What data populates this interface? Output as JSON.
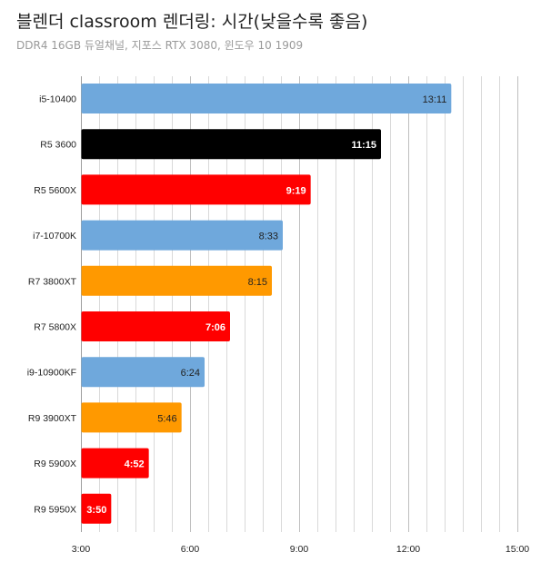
{
  "title": "블렌더 classroom 렌더링: 시간(낮을수록 좋음)",
  "subtitle": "DDR4 16GB 듀얼채널, 지포스 RTX 3080, 윈도우 10 1909",
  "colors": {
    "intel": "#6fa8dc",
    "amd_zen2": "#ff9900",
    "amd_zen3": "#ff0000",
    "reference": "#000000",
    "grid": "#d9d9d9",
    "axis_text": "#222222"
  },
  "chart_data": {
    "type": "bar",
    "orientation": "horizontal",
    "title": "블렌더 classroom 렌더링: 시간(낮을수록 좋음)",
    "subtitle": "DDR4 16GB 듀얼채널, 지포스 RTX 3080, 윈도우 10 1909",
    "xlabel": "",
    "ylabel": "",
    "x_unit": "minutes",
    "xlim": [
      3,
      15
    ],
    "xticks": [
      3,
      6,
      9,
      12,
      15
    ],
    "xtick_labels": [
      "3:00",
      "6:00",
      "9:00",
      "12:00",
      "15:00"
    ],
    "grid": true,
    "legend": "none",
    "bars": [
      {
        "category": "i5-10400",
        "value": 13.1833,
        "label": "13:11",
        "color": "#6fa8dc",
        "label_color": "#222222",
        "bold": false
      },
      {
        "category": "R5 3600",
        "value": 11.25,
        "label": "11:15",
        "color": "#000000",
        "label_color": "#ffffff",
        "bold": true
      },
      {
        "category": "R5 5600X",
        "value": 9.3167,
        "label": "9:19",
        "color": "#ff0000",
        "label_color": "#ffffff",
        "bold": true
      },
      {
        "category": "i7-10700K",
        "value": 8.55,
        "label": "8:33",
        "color": "#6fa8dc",
        "label_color": "#222222",
        "bold": false
      },
      {
        "category": "R7 3800XT",
        "value": 8.25,
        "label": "8:15",
        "color": "#ff9900",
        "label_color": "#222222",
        "bold": false
      },
      {
        "category": "R7 5800X",
        "value": 7.1,
        "label": "7:06",
        "color": "#ff0000",
        "label_color": "#ffffff",
        "bold": true
      },
      {
        "category": "i9-10900KF",
        "value": 6.4,
        "label": "6:24",
        "color": "#6fa8dc",
        "label_color": "#222222",
        "bold": false
      },
      {
        "category": "R9 3900XT",
        "value": 5.7667,
        "label": "5:46",
        "color": "#ff9900",
        "label_color": "#222222",
        "bold": false
      },
      {
        "category": "R9 5900X",
        "value": 4.8667,
        "label": "4:52",
        "color": "#ff0000",
        "label_color": "#ffffff",
        "bold": true
      },
      {
        "category": "R9 5950X",
        "value": 3.8333,
        "label": "3:50",
        "color": "#ff0000",
        "label_color": "#ffffff",
        "bold": true
      }
    ]
  }
}
